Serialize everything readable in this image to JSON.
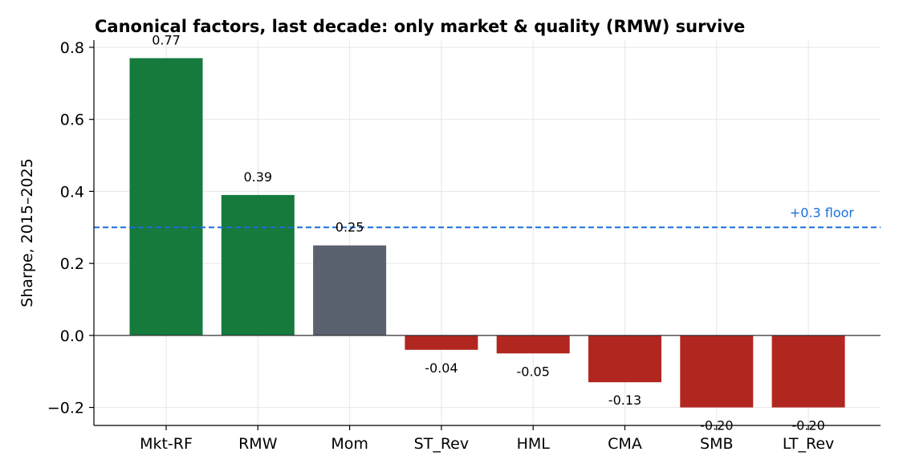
{
  "chart_data": {
    "type": "bar",
    "title": "Canonical factors, last decade: only market & quality (RMW) survive",
    "xlabel": "",
    "ylabel": "Sharpe, 2015–2025",
    "ylim": [
      -0.25,
      0.82
    ],
    "yticks": [
      -0.2,
      0.0,
      0.2,
      0.4,
      0.6,
      0.8
    ],
    "ytick_labels": [
      "−0.2",
      "0.0",
      "0.2",
      "0.4",
      "0.6",
      "0.8"
    ],
    "categories": [
      "Mkt-RF",
      "RMW",
      "Mom",
      "ST_Rev",
      "HML",
      "CMA",
      "SMB",
      "LT_Rev"
    ],
    "values": [
      0.77,
      0.39,
      0.25,
      -0.04,
      -0.05,
      -0.13,
      -0.2,
      -0.2
    ],
    "value_labels": [
      "0.77",
      "0.39",
      "0.25",
      "-0.04",
      "-0.05",
      "-0.13",
      "-0.20",
      "-0.20"
    ],
    "bar_colors": [
      "#157a3c",
      "#157a3c",
      "#5a6270",
      "#b22620",
      "#b22620",
      "#b22620",
      "#b22620",
      "#b22620"
    ],
    "reference_line": {
      "value": 0.3,
      "label": "+0.3 floor",
      "color": "#1a6fdc",
      "style": "dashed"
    },
    "grid": true,
    "legend": "none"
  }
}
